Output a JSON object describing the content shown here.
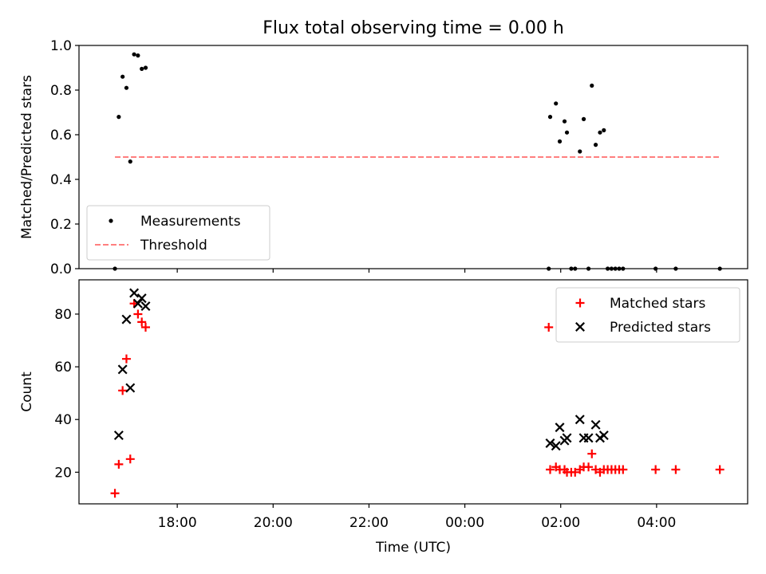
{
  "figure_title": "Flux total observing time = 0.00 h",
  "chart_data": [
    {
      "type": "scatter",
      "panel": "top",
      "title": "Flux total observing time = 0.00 h",
      "xlabel": "",
      "ylabel": "Matched/Predicted stars",
      "x_unit": "hours since 00:00 UTC",
      "xlim": [
        -8.05,
        5.9
      ],
      "ylim": [
        0.0,
        1.0
      ],
      "yticks": [
        0.0,
        0.2,
        0.4,
        0.6,
        0.8,
        1.0
      ],
      "ytick_labels": [
        "0.0",
        "0.2",
        "0.4",
        "0.6",
        "0.8",
        "1.0"
      ],
      "grid": false,
      "legend_position": "lower-left",
      "series": [
        {
          "name": "Measurements",
          "marker": "dot",
          "color": "#000000",
          "points": [
            [
              -7.3,
              0.0
            ],
            [
              -7.22,
              0.68
            ],
            [
              -7.14,
              0.86
            ],
            [
              -7.06,
              0.81
            ],
            [
              -6.98,
              0.48
            ],
            [
              -6.9,
              0.96
            ],
            [
              -6.82,
              0.955
            ],
            [
              -6.74,
              0.895
            ],
            [
              -6.66,
              0.9
            ],
            [
              1.75,
              0.0
            ],
            [
              1.78,
              0.68
            ],
            [
              1.9,
              0.74
            ],
            [
              1.98,
              0.57
            ],
            [
              2.08,
              0.66
            ],
            [
              2.13,
              0.61
            ],
            [
              2.22,
              0.0
            ],
            [
              2.3,
              0.0
            ],
            [
              2.4,
              0.525
            ],
            [
              2.48,
              0.67
            ],
            [
              2.58,
              0.0
            ],
            [
              2.65,
              0.82
            ],
            [
              2.73,
              0.555
            ],
            [
              2.82,
              0.61
            ],
            [
              2.9,
              0.62
            ],
            [
              2.98,
              0.0
            ],
            [
              3.06,
              0.0
            ],
            [
              3.14,
              0.0
            ],
            [
              3.22,
              0.0
            ],
            [
              3.3,
              0.0
            ],
            [
              3.98,
              0.0
            ],
            [
              4.4,
              0.0
            ],
            [
              5.32,
              0.0
            ]
          ]
        },
        {
          "name": "Threshold",
          "style": "dashed",
          "color": "#ff7f7f",
          "x": [
            -7.3,
            5.3
          ],
          "y": [
            0.5,
            0.5
          ]
        }
      ]
    },
    {
      "type": "scatter",
      "panel": "bottom",
      "xlabel": "Time (UTC)",
      "ylabel": "Count",
      "x_unit": "hours since 00:00 UTC",
      "xlim": [
        -8.05,
        5.9
      ],
      "ylim": [
        8,
        93
      ],
      "xticks": [
        -6,
        -4,
        -2,
        0,
        2,
        4
      ],
      "xtick_labels": [
        "18:00",
        "20:00",
        "22:00",
        "00:00",
        "02:00",
        "04:00"
      ],
      "yticks": [
        20,
        40,
        60,
        80
      ],
      "ytick_labels": [
        "20",
        "40",
        "60",
        "80"
      ],
      "grid": false,
      "legend_position": "upper-right",
      "series": [
        {
          "name": "Matched stars",
          "marker": "plus",
          "color": "#ff0000",
          "points": [
            [
              -7.3,
              12
            ],
            [
              -7.22,
              23
            ],
            [
              -7.14,
              51
            ],
            [
              -7.06,
              63
            ],
            [
              -6.98,
              25
            ],
            [
              -6.9,
              84
            ],
            [
              -6.82,
              80
            ],
            [
              -6.74,
              77
            ],
            [
              -6.66,
              75
            ],
            [
              1.75,
              75
            ],
            [
              1.78,
              21
            ],
            [
              1.9,
              22
            ],
            [
              1.98,
              21
            ],
            [
              2.08,
              21
            ],
            [
              2.13,
              20
            ],
            [
              2.22,
              20
            ],
            [
              2.3,
              20
            ],
            [
              2.4,
              21
            ],
            [
              2.48,
              22
            ],
            [
              2.58,
              22
            ],
            [
              2.65,
              27
            ],
            [
              2.73,
              21
            ],
            [
              2.82,
              20
            ],
            [
              2.9,
              21
            ],
            [
              2.98,
              21
            ],
            [
              3.06,
              21
            ],
            [
              3.14,
              21
            ],
            [
              3.22,
              21
            ],
            [
              3.3,
              21
            ],
            [
              3.98,
              21
            ],
            [
              4.4,
              21
            ],
            [
              5.32,
              21
            ]
          ]
        },
        {
          "name": "Predicted stars",
          "marker": "x",
          "color": "#000000",
          "points": [
            [
              -7.22,
              34
            ],
            [
              -7.14,
              59
            ],
            [
              -7.06,
              78
            ],
            [
              -6.98,
              52
            ],
            [
              -6.9,
              88
            ],
            [
              -6.82,
              84
            ],
            [
              -6.74,
              86
            ],
            [
              -6.66,
              83
            ],
            [
              1.78,
              31
            ],
            [
              1.9,
              30
            ],
            [
              1.98,
              37
            ],
            [
              2.08,
              32
            ],
            [
              2.13,
              33
            ],
            [
              2.4,
              40
            ],
            [
              2.48,
              33
            ],
            [
              2.58,
              33
            ],
            [
              2.73,
              38
            ],
            [
              2.82,
              33
            ],
            [
              2.9,
              34
            ]
          ]
        }
      ]
    }
  ]
}
